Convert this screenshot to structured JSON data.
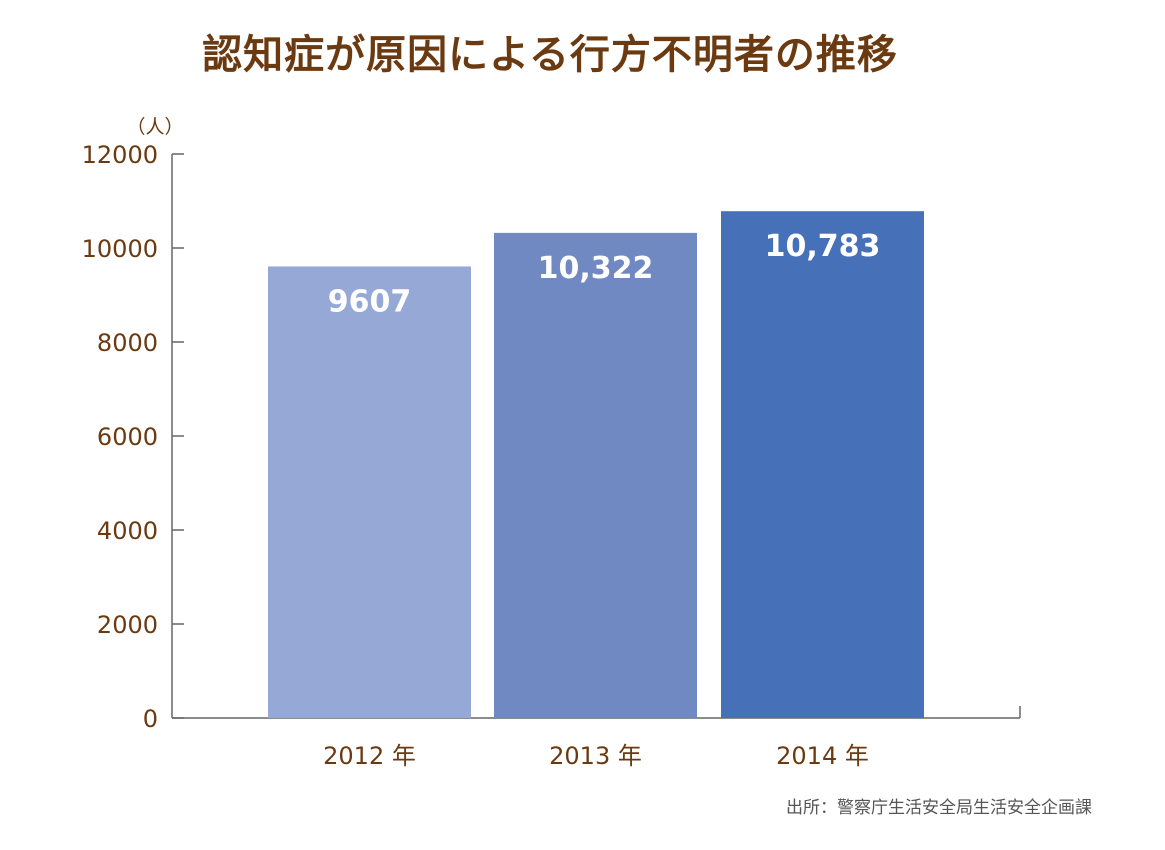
{
  "chart_data": {
    "type": "bar",
    "title": "認知症が原因による行方不明者の推移",
    "y_unit": "（人）",
    "categories": [
      "2012 年",
      "2013 年",
      "2014 年"
    ],
    "values": [
      9607,
      10322,
      10783
    ],
    "data_labels": [
      "9607",
      "10,322",
      "10,783"
    ],
    "bar_colors": [
      "#96a8d6",
      "#7189c3",
      "#4670b7"
    ],
    "ylim": [
      0,
      12000
    ],
    "yticks": [
      0,
      2000,
      4000,
      6000,
      8000,
      10000,
      12000
    ],
    "ytick_labels": [
      "0",
      "2000",
      "4000",
      "6000",
      "8000",
      "10000",
      "12000"
    ],
    "grid": false,
    "legend": "none"
  },
  "source": "出所：警察庁生活安全局生活安全企画課",
  "colors": {
    "title": "#6b3a10",
    "axis_text": "#6b3a10",
    "axis_line": "#666666",
    "data_label": "#ffffff"
  }
}
